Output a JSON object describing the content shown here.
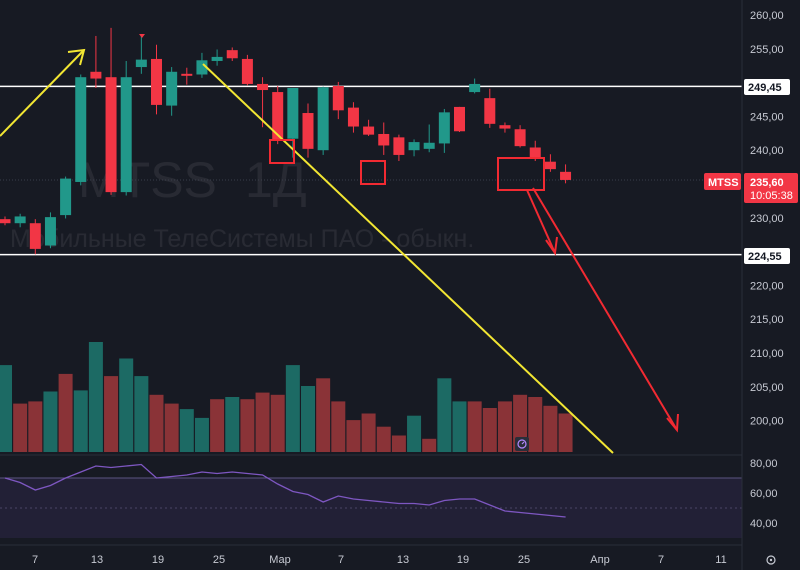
{
  "chart_data": {
    "type": "candlestick",
    "ticker": "MTSS",
    "interval": "1Д",
    "company": "Мобильные ТелеСистемы ПАО - обыкн.",
    "price_ticks": [
      "260,00",
      "255,00",
      "250,00",
      "245,00",
      "240,00",
      "235,00",
      "230,00",
      "225,00",
      "220,00",
      "215,00",
      "210,00",
      "205,00",
      "200,00"
    ],
    "rsi_ticks": [
      "80,00",
      "60,00",
      "40,00"
    ],
    "x_ticks": [
      "7",
      "13",
      "19",
      "25",
      "Мар",
      "7",
      "13",
      "19",
      "25",
      "Апр",
      "7",
      "11"
    ],
    "ylim": [
      196,
      262
    ],
    "levels": [
      "249,45",
      "224,55"
    ],
    "current_price": "235,60",
    "countdown": "10:05:38",
    "candles": [
      {
        "o": 229.8,
        "h": 230.2,
        "l": 228.9,
        "c": 229.2
      },
      {
        "o": 229.2,
        "h": 230.6,
        "l": 228.6,
        "c": 230.2
      },
      {
        "o": 229.2,
        "h": 229.8,
        "l": 224.6,
        "c": 225.4
      },
      {
        "o": 225.9,
        "h": 230.8,
        "l": 225.5,
        "c": 230.1
      },
      {
        "o": 230.4,
        "h": 236.1,
        "l": 229.9,
        "c": 235.8
      },
      {
        "o": 235.3,
        "h": 251.2,
        "l": 234.8,
        "c": 250.8
      },
      {
        "o": 251.6,
        "h": 256.9,
        "l": 249.2,
        "c": 250.6
      },
      {
        "o": 250.8,
        "h": 258.1,
        "l": 233.4,
        "c": 233.8
      },
      {
        "o": 233.8,
        "h": 253.2,
        "l": 233.3,
        "c": 250.8
      },
      {
        "o": 252.3,
        "h": 256.9,
        "l": 251.3,
        "c": 253.4
      },
      {
        "o": 253.5,
        "h": 255.6,
        "l": 245.3,
        "c": 246.7
      },
      {
        "o": 246.6,
        "h": 252.3,
        "l": 245.1,
        "c": 251.6
      },
      {
        "o": 251.3,
        "h": 252.2,
        "l": 249.7,
        "c": 251.2
      },
      {
        "o": 251.2,
        "h": 254.4,
        "l": 250.7,
        "c": 253.3
      },
      {
        "o": 253.2,
        "h": 254.9,
        "l": 252.5,
        "c": 253.8
      },
      {
        "o": 254.8,
        "h": 255.2,
        "l": 253.2,
        "c": 253.6
      },
      {
        "o": 253.5,
        "h": 254.1,
        "l": 249.6,
        "c": 249.8
      },
      {
        "o": 249.8,
        "h": 250.8,
        "l": 243.4,
        "c": 248.9
      },
      {
        "o": 248.6,
        "h": 249.5,
        "l": 240.9,
        "c": 241.5
      },
      {
        "o": 241.7,
        "h": 249.1,
        "l": 238.9,
        "c": 249.2
      },
      {
        "o": 245.5,
        "h": 246.9,
        "l": 238.9,
        "c": 240.2
      },
      {
        "o": 240.0,
        "h": 249.4,
        "l": 239.3,
        "c": 249.3
      },
      {
        "o": 249.5,
        "h": 250.1,
        "l": 244.6,
        "c": 245.9
      },
      {
        "o": 246.3,
        "h": 247.1,
        "l": 242.6,
        "c": 243.5
      },
      {
        "o": 243.5,
        "h": 244.5,
        "l": 242.1,
        "c": 242.3
      },
      {
        "o": 242.4,
        "h": 244.1,
        "l": 239.3,
        "c": 240.7
      },
      {
        "o": 241.9,
        "h": 242.3,
        "l": 238.4,
        "c": 239.3
      },
      {
        "o": 240.0,
        "h": 241.6,
        "l": 239.1,
        "c": 241.2
      },
      {
        "o": 240.2,
        "h": 243.8,
        "l": 239.7,
        "c": 241.1
      },
      {
        "o": 241.0,
        "h": 246.1,
        "l": 239.6,
        "c": 245.6
      },
      {
        "o": 246.4,
        "h": 246.4,
        "l": 242.7,
        "c": 242.8
      },
      {
        "o": 248.6,
        "h": 250.6,
        "l": 248.4,
        "c": 249.8
      },
      {
        "o": 247.7,
        "h": 249.1,
        "l": 243.3,
        "c": 243.9
      },
      {
        "o": 243.7,
        "h": 244.1,
        "l": 242.6,
        "c": 243.2
      },
      {
        "o": 243.1,
        "h": 243.7,
        "l": 240.4,
        "c": 240.6
      },
      {
        "o": 240.4,
        "h": 241.4,
        "l": 238.4,
        "c": 238.9
      },
      {
        "o": 238.3,
        "h": 239.4,
        "l": 236.8,
        "c": 237.2
      },
      {
        "o": 236.8,
        "h": 237.9,
        "l": 235.1,
        "c": 235.6
      }
    ],
    "volume": [
      {
        "v": 0.79,
        "up": true
      },
      {
        "v": 0.44,
        "up": false
      },
      {
        "v": 0.46,
        "up": false
      },
      {
        "v": 0.55,
        "up": true
      },
      {
        "v": 0.71,
        "up": false
      },
      {
        "v": 0.56,
        "up": true
      },
      {
        "v": 1.0,
        "up": true
      },
      {
        "v": 0.69,
        "up": false
      },
      {
        "v": 0.85,
        "up": true
      },
      {
        "v": 0.69,
        "up": true
      },
      {
        "v": 0.52,
        "up": false
      },
      {
        "v": 0.44,
        "up": false
      },
      {
        "v": 0.39,
        "up": true
      },
      {
        "v": 0.31,
        "up": true
      },
      {
        "v": 0.48,
        "up": false
      },
      {
        "v": 0.5,
        "up": true
      },
      {
        "v": 0.48,
        "up": false
      },
      {
        "v": 0.54,
        "up": false
      },
      {
        "v": 0.52,
        "up": false
      },
      {
        "v": 0.79,
        "up": true
      },
      {
        "v": 0.6,
        "up": true
      },
      {
        "v": 0.67,
        "up": false
      },
      {
        "v": 0.46,
        "up": false
      },
      {
        "v": 0.29,
        "up": false
      },
      {
        "v": 0.35,
        "up": false
      },
      {
        "v": 0.23,
        "up": false
      },
      {
        "v": 0.15,
        "up": false
      },
      {
        "v": 0.33,
        "up": true
      },
      {
        "v": 0.12,
        "up": false
      },
      {
        "v": 0.67,
        "up": true
      },
      {
        "v": 0.46,
        "up": true
      },
      {
        "v": 0.46,
        "up": false
      },
      {
        "v": 0.4,
        "up": false
      },
      {
        "v": 0.46,
        "up": false
      },
      {
        "v": 0.52,
        "up": false
      },
      {
        "v": 0.5,
        "up": false
      },
      {
        "v": 0.42,
        "up": false
      },
      {
        "v": 0.35,
        "up": false
      }
    ],
    "rsi": [
      70,
      67,
      62,
      65,
      70,
      74,
      78,
      77,
      78,
      79,
      70,
      71,
      72,
      74,
      73,
      74,
      73,
      72,
      66,
      61,
      59,
      54,
      58,
      56,
      55,
      54,
      53,
      53,
      52,
      55,
      56,
      56,
      52,
      48,
      47,
      46,
      45,
      44
    ],
    "colors": {
      "up": "#21988a",
      "down": "#f23645",
      "vol_up": "#1c6a64",
      "vol_down": "#8a3337",
      "level": "#ffffff",
      "annotation_yellow": "#f2e633",
      "annotation_red": "#f22a32",
      "rsi_line": "#7e57c2",
      "rsi_band": "#2a2442",
      "background": "#171a23"
    }
  }
}
